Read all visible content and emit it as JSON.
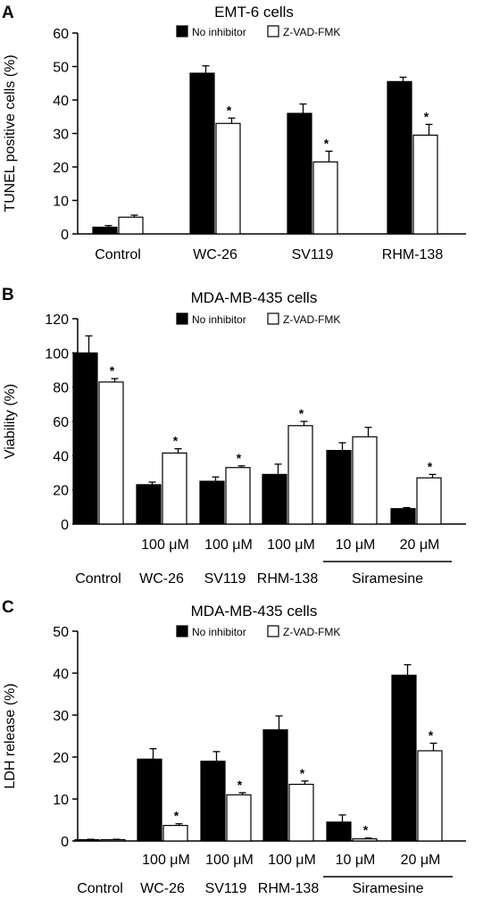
{
  "chart_data": [
    {
      "type": "bar",
      "panel": "A",
      "title": "EMT-6 cells",
      "ylabel": "TUNEL positive cells (%)",
      "xlabel": "",
      "ylim": [
        0,
        60
      ],
      "yticks": [
        0,
        10,
        20,
        30,
        40,
        50,
        60
      ],
      "categories": [
        "Control",
        "WC-26",
        "SV119",
        "RHM-138"
      ],
      "concentrations": [],
      "group_label": "",
      "series": [
        {
          "name": "No inhibitor",
          "color": "#000000",
          "values": [
            2,
            48,
            36,
            45.5
          ],
          "errors": [
            0.5,
            2.2,
            2.8,
            1.3
          ]
        },
        {
          "name": "Z-VAD-FMK",
          "color": "#ffffff",
          "values": [
            5,
            33,
            21.5,
            29.5
          ],
          "errors": [
            0.6,
            1.6,
            3.2,
            3.2
          ]
        }
      ],
      "significant": [
        false,
        true,
        true,
        true
      ],
      "star": "*",
      "legend_position": "top"
    },
    {
      "type": "bar",
      "panel": "B",
      "title": "MDA-MB-435 cells",
      "ylabel": "Viability (%)",
      "xlabel": "",
      "ylim": [
        0,
        120
      ],
      "yticks": [
        0,
        20,
        40,
        60,
        80,
        100,
        120
      ],
      "categories": [
        "Control",
        "WC-26",
        "SV119",
        "RHM-138",
        "Siramesine",
        "Siramesine"
      ],
      "concentrations": [
        "",
        "100 μM",
        "100 μM",
        "100 μM",
        "10 μM",
        "20 μM"
      ],
      "group_label": "Siramesine",
      "series": [
        {
          "name": "No inhibitor",
          "color": "#000000",
          "values": [
            100,
            23,
            25,
            29,
            43,
            9
          ],
          "errors": [
            10,
            1.5,
            2.5,
            6,
            4.5,
            0.6
          ]
        },
        {
          "name": "Z-VAD-FMK",
          "color": "#ffffff",
          "values": [
            83,
            41.5,
            33,
            57.5,
            51,
            27
          ],
          "errors": [
            2,
            2.5,
            1,
            2.5,
            5.5,
            2
          ]
        }
      ],
      "significant": [
        true,
        true,
        true,
        true,
        false,
        true
      ],
      "star": "*",
      "legend_position": "top"
    },
    {
      "type": "bar",
      "panel": "C",
      "title": "MDA-MB-435 cells",
      "ylabel": "LDH release (%)",
      "xlabel": "",
      "ylim": [
        0,
        50
      ],
      "yticks": [
        0,
        10,
        20,
        30,
        40,
        50
      ],
      "categories": [
        "Control",
        "WC-26",
        "SV119",
        "RHM-138",
        "Siramesine",
        "Siramesine"
      ],
      "concentrations": [
        "",
        "100 μM",
        "100 μM",
        "100 μM",
        "10 μM",
        "20 μM"
      ],
      "group_label": "Siramesine",
      "series": [
        {
          "name": "No inhibitor",
          "color": "#000000",
          "values": [
            0.3,
            19.5,
            19,
            26.5,
            4.5,
            39.5
          ],
          "errors": [
            0.1,
            2.5,
            2.3,
            3.3,
            1.7,
            2.5
          ]
        },
        {
          "name": "Z-VAD-FMK",
          "color": "#ffffff",
          "values": [
            0.3,
            3.7,
            11,
            13.5,
            0.5,
            21.5
          ],
          "errors": [
            0.1,
            0.4,
            0.5,
            0.8,
            0.2,
            1.8
          ]
        }
      ],
      "significant": [
        false,
        true,
        true,
        true,
        true,
        true
      ],
      "star": "*",
      "legend_position": "top"
    }
  ]
}
